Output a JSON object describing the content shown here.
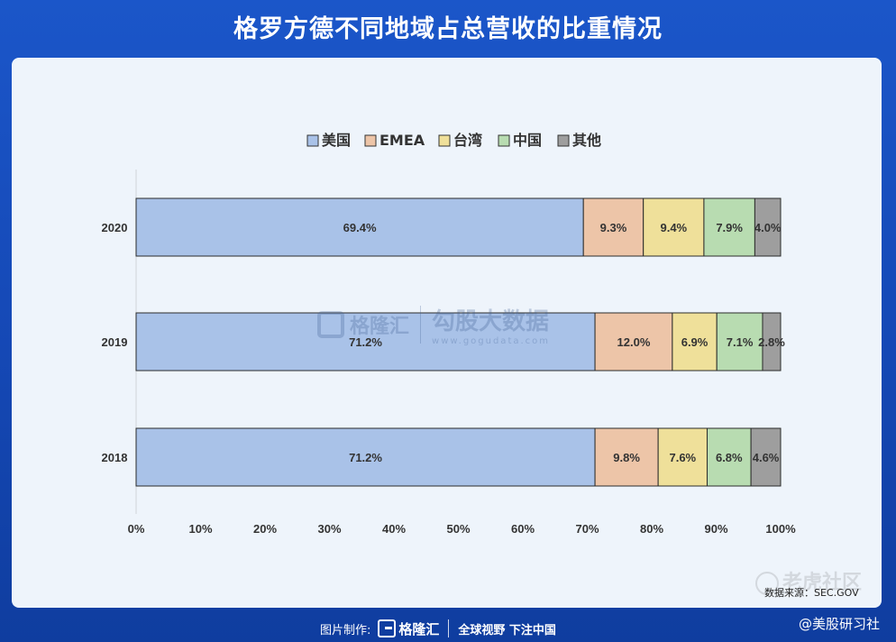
{
  "title": "格罗方德不同地域占总营收的比重情况",
  "footer": {
    "made_by": "图片制作:",
    "brand": "格隆汇",
    "slogan": "全球视野 下注中国"
  },
  "credit": "@美股研习社",
  "corner_watermark": "老虎社区",
  "source": "数据来源：SEC.GOV",
  "watermark": {
    "brand": "格隆汇",
    "brand2": "勾股大数据",
    "url": "www.gogudata.com"
  },
  "colors": {
    "us": "#a9c2e8",
    "emea": "#edc5a8",
    "taiwan": "#efe09a",
    "china": "#b8dcb1",
    "other": "#9e9e9e"
  },
  "chart_data": {
    "type": "bar",
    "orientation": "horizontal",
    "stacked": true,
    "categories": [
      "2020",
      "2019",
      "2018"
    ],
    "series": [
      {
        "name": "美国",
        "values": [
          69.4,
          71.2,
          71.2
        ],
        "color": "#a9c2e8"
      },
      {
        "name": "EMEA",
        "values": [
          9.3,
          12.0,
          9.8
        ],
        "color": "#edc5a8"
      },
      {
        "name": "台湾",
        "values": [
          9.4,
          6.9,
          7.6
        ],
        "color": "#efe09a"
      },
      {
        "name": "中国",
        "values": [
          7.9,
          7.1,
          6.8
        ],
        "color": "#b8dcb1"
      },
      {
        "name": "其他",
        "values": [
          4.0,
          2.8,
          4.6
        ],
        "color": "#9e9e9e"
      }
    ],
    "data_labels": [
      [
        "69.4%",
        "9.3%",
        "9.4%",
        "7.9%",
        "4.0%"
      ],
      [
        "71.2%",
        "12.0%",
        "6.9%",
        "7.1%",
        "2.8%"
      ],
      [
        "71.2%",
        "9.8%",
        "7.6%",
        "6.8%",
        "4.6%"
      ]
    ],
    "x_ticks": [
      "0%",
      "10%",
      "20%",
      "30%",
      "40%",
      "50%",
      "60%",
      "70%",
      "80%",
      "90%",
      "100%"
    ],
    "xlim": [
      0,
      100
    ],
    "legend_position": "top",
    "grid": false
  }
}
